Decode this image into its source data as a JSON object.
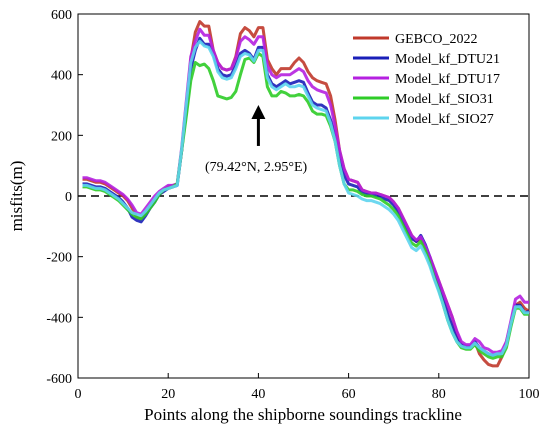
{
  "chart_data": {
    "type": "line",
    "title": "",
    "xlabel": "Points along the shipborne soundings trackline",
    "ylabel": "misfits(m)",
    "xlim": [
      0,
      100
    ],
    "ylim": [
      -600,
      600
    ],
    "xticks": [
      0,
      20,
      40,
      60,
      80,
      100
    ],
    "yticks": [
      -600,
      -400,
      -200,
      0,
      200,
      400,
      600
    ],
    "grid": false,
    "reference_line": {
      "y": 0,
      "style": "dashed",
      "color": "#000000"
    },
    "legend_position": "top-right",
    "annotation": {
      "text": "(79.42°N, 2.95°E)",
      "arrow_tail": [
        40,
        165
      ],
      "arrow_head": [
        40,
        300
      ]
    },
    "x": [
      1,
      2,
      3,
      4,
      5,
      6,
      7,
      8,
      9,
      10,
      11,
      12,
      13,
      14,
      15,
      16,
      17,
      18,
      19,
      20,
      21,
      22,
      23,
      24,
      25,
      26,
      27,
      28,
      29,
      30,
      31,
      32,
      33,
      34,
      35,
      36,
      37,
      38,
      39,
      40,
      41,
      42,
      43,
      44,
      45,
      46,
      47,
      48,
      49,
      50,
      51,
      52,
      53,
      54,
      55,
      56,
      57,
      58,
      59,
      60,
      61,
      62,
      63,
      64,
      65,
      66,
      67,
      68,
      69,
      70,
      71,
      72,
      73,
      74,
      75,
      76,
      77,
      78,
      79,
      80,
      81,
      82,
      83,
      84,
      85,
      86,
      87,
      88,
      89,
      90,
      91,
      92,
      93,
      94,
      95,
      96,
      97,
      98,
      99,
      100
    ],
    "series": [
      {
        "name": "GEBCO_2022",
        "color": "#c0392b",
        "values": [
          55,
          55,
          50,
          45,
          45,
          40,
          30,
          20,
          10,
          0,
          -15,
          -40,
          -70,
          -75,
          -55,
          -30,
          -10,
          10,
          20,
          30,
          35,
          40,
          150,
          300,
          450,
          540,
          575,
          560,
          560,
          480,
          440,
          420,
          415,
          420,
          460,
          535,
          555,
          545,
          525,
          555,
          555,
          450,
          420,
          400,
          420,
          420,
          420,
          440,
          455,
          440,
          410,
          390,
          380,
          375,
          370,
          330,
          250,
          150,
          90,
          55,
          50,
          45,
          20,
          15,
          10,
          10,
          5,
          0,
          -5,
          -20,
          -40,
          -70,
          -100,
          -130,
          -150,
          -140,
          -170,
          -200,
          -240,
          -280,
          -320,
          -360,
          -400,
          -450,
          -490,
          -500,
          -500,
          -480,
          -520,
          -540,
          -555,
          -560,
          -560,
          -530,
          -480,
          -420,
          -360,
          -350,
          -370,
          -380
        ]
      },
      {
        "name": "Model_kf_DTU21",
        "color": "#1a1fb8",
        "values": [
          40,
          40,
          35,
          30,
          30,
          25,
          15,
          5,
          -5,
          -20,
          -40,
          -70,
          -80,
          -85,
          -65,
          -40,
          -20,
          5,
          15,
          25,
          30,
          35,
          150,
          280,
          420,
          480,
          520,
          500,
          500,
          470,
          420,
          400,
          395,
          400,
          430,
          470,
          480,
          470,
          450,
          490,
          490,
          400,
          370,
          360,
          370,
          380,
          370,
          375,
          380,
          375,
          340,
          310,
          300,
          300,
          290,
          250,
          200,
          130,
          70,
          40,
          35,
          30,
          10,
          5,
          5,
          0,
          0,
          -10,
          -15,
          -30,
          -50,
          -80,
          -110,
          -140,
          -150,
          -130,
          -160,
          -200,
          -250,
          -290,
          -340,
          -390,
          -430,
          -470,
          -490,
          -495,
          -495,
          -480,
          -500,
          -510,
          -520,
          -525,
          -520,
          -520,
          -490,
          -420,
          -360,
          -360,
          -385,
          -380
        ]
      },
      {
        "name": "Model_kf_DTU17",
        "color": "#b520e0",
        "values": [
          60,
          60,
          55,
          50,
          50,
          45,
          35,
          25,
          15,
          5,
          -10,
          -30,
          -55,
          -60,
          -40,
          -20,
          0,
          15,
          25,
          35,
          35,
          40,
          160,
          310,
          460,
          510,
          550,
          530,
          530,
          480,
          440,
          420,
          415,
          420,
          455,
          510,
          525,
          515,
          500,
          525,
          525,
          430,
          400,
          390,
          400,
          400,
          400,
          410,
          420,
          410,
          380,
          360,
          350,
          345,
          340,
          300,
          230,
          150,
          90,
          55,
          50,
          45,
          20,
          15,
          10,
          10,
          5,
          0,
          -5,
          -20,
          -40,
          -70,
          -100,
          -130,
          -145,
          -135,
          -165,
          -200,
          -240,
          -280,
          -320,
          -360,
          -400,
          -445,
          -480,
          -490,
          -490,
          -470,
          -480,
          -500,
          -505,
          -515,
          -515,
          -510,
          -480,
          -410,
          -340,
          -330,
          -350,
          -350
        ]
      },
      {
        "name": "Model_kf_SIO31",
        "color": "#2ecc27",
        "values": [
          30,
          30,
          25,
          20,
          20,
          15,
          5,
          -5,
          -15,
          -30,
          -45,
          -60,
          -70,
          -75,
          -60,
          -40,
          -20,
          5,
          20,
          25,
          30,
          40,
          150,
          260,
          380,
          440,
          430,
          435,
          420,
          380,
          330,
          325,
          320,
          325,
          345,
          400,
          450,
          455,
          440,
          470,
          460,
          360,
          330,
          330,
          345,
          340,
          330,
          330,
          335,
          330,
          310,
          280,
          270,
          270,
          265,
          230,
          180,
          100,
          40,
          20,
          20,
          15,
          5,
          0,
          0,
          -5,
          -10,
          -20,
          -30,
          -45,
          -65,
          -95,
          -125,
          -155,
          -165,
          -150,
          -180,
          -220,
          -270,
          -310,
          -360,
          -410,
          -450,
          -480,
          -500,
          -505,
          -505,
          -490,
          -510,
          -520,
          -530,
          -535,
          -530,
          -530,
          -500,
          -430,
          -370,
          -370,
          -390,
          -390
        ]
      },
      {
        "name": "Model_kf_SIO27",
        "color": "#5dd4ee",
        "values": [
          35,
          35,
          30,
          25,
          25,
          20,
          10,
          0,
          -10,
          -25,
          -40,
          -55,
          -60,
          -65,
          -50,
          -30,
          -10,
          10,
          20,
          25,
          30,
          35,
          155,
          300,
          440,
          490,
          510,
          495,
          490,
          460,
          410,
          390,
          385,
          390,
          420,
          460,
          470,
          465,
          445,
          480,
          480,
          390,
          360,
          350,
          360,
          370,
          360,
          360,
          365,
          360,
          330,
          300,
          290,
          285,
          280,
          240,
          180,
          100,
          40,
          10,
          5,
          0,
          -10,
          -15,
          -15,
          -20,
          -25,
          -35,
          -45,
          -60,
          -80,
          -110,
          -140,
          -170,
          -180,
          -165,
          -195,
          -230,
          -275,
          -315,
          -360,
          -410,
          -450,
          -480,
          -495,
          -500,
          -500,
          -485,
          -500,
          -510,
          -520,
          -525,
          -520,
          -520,
          -490,
          -420,
          -365,
          -365,
          -385,
          -385
        ]
      }
    ]
  }
}
